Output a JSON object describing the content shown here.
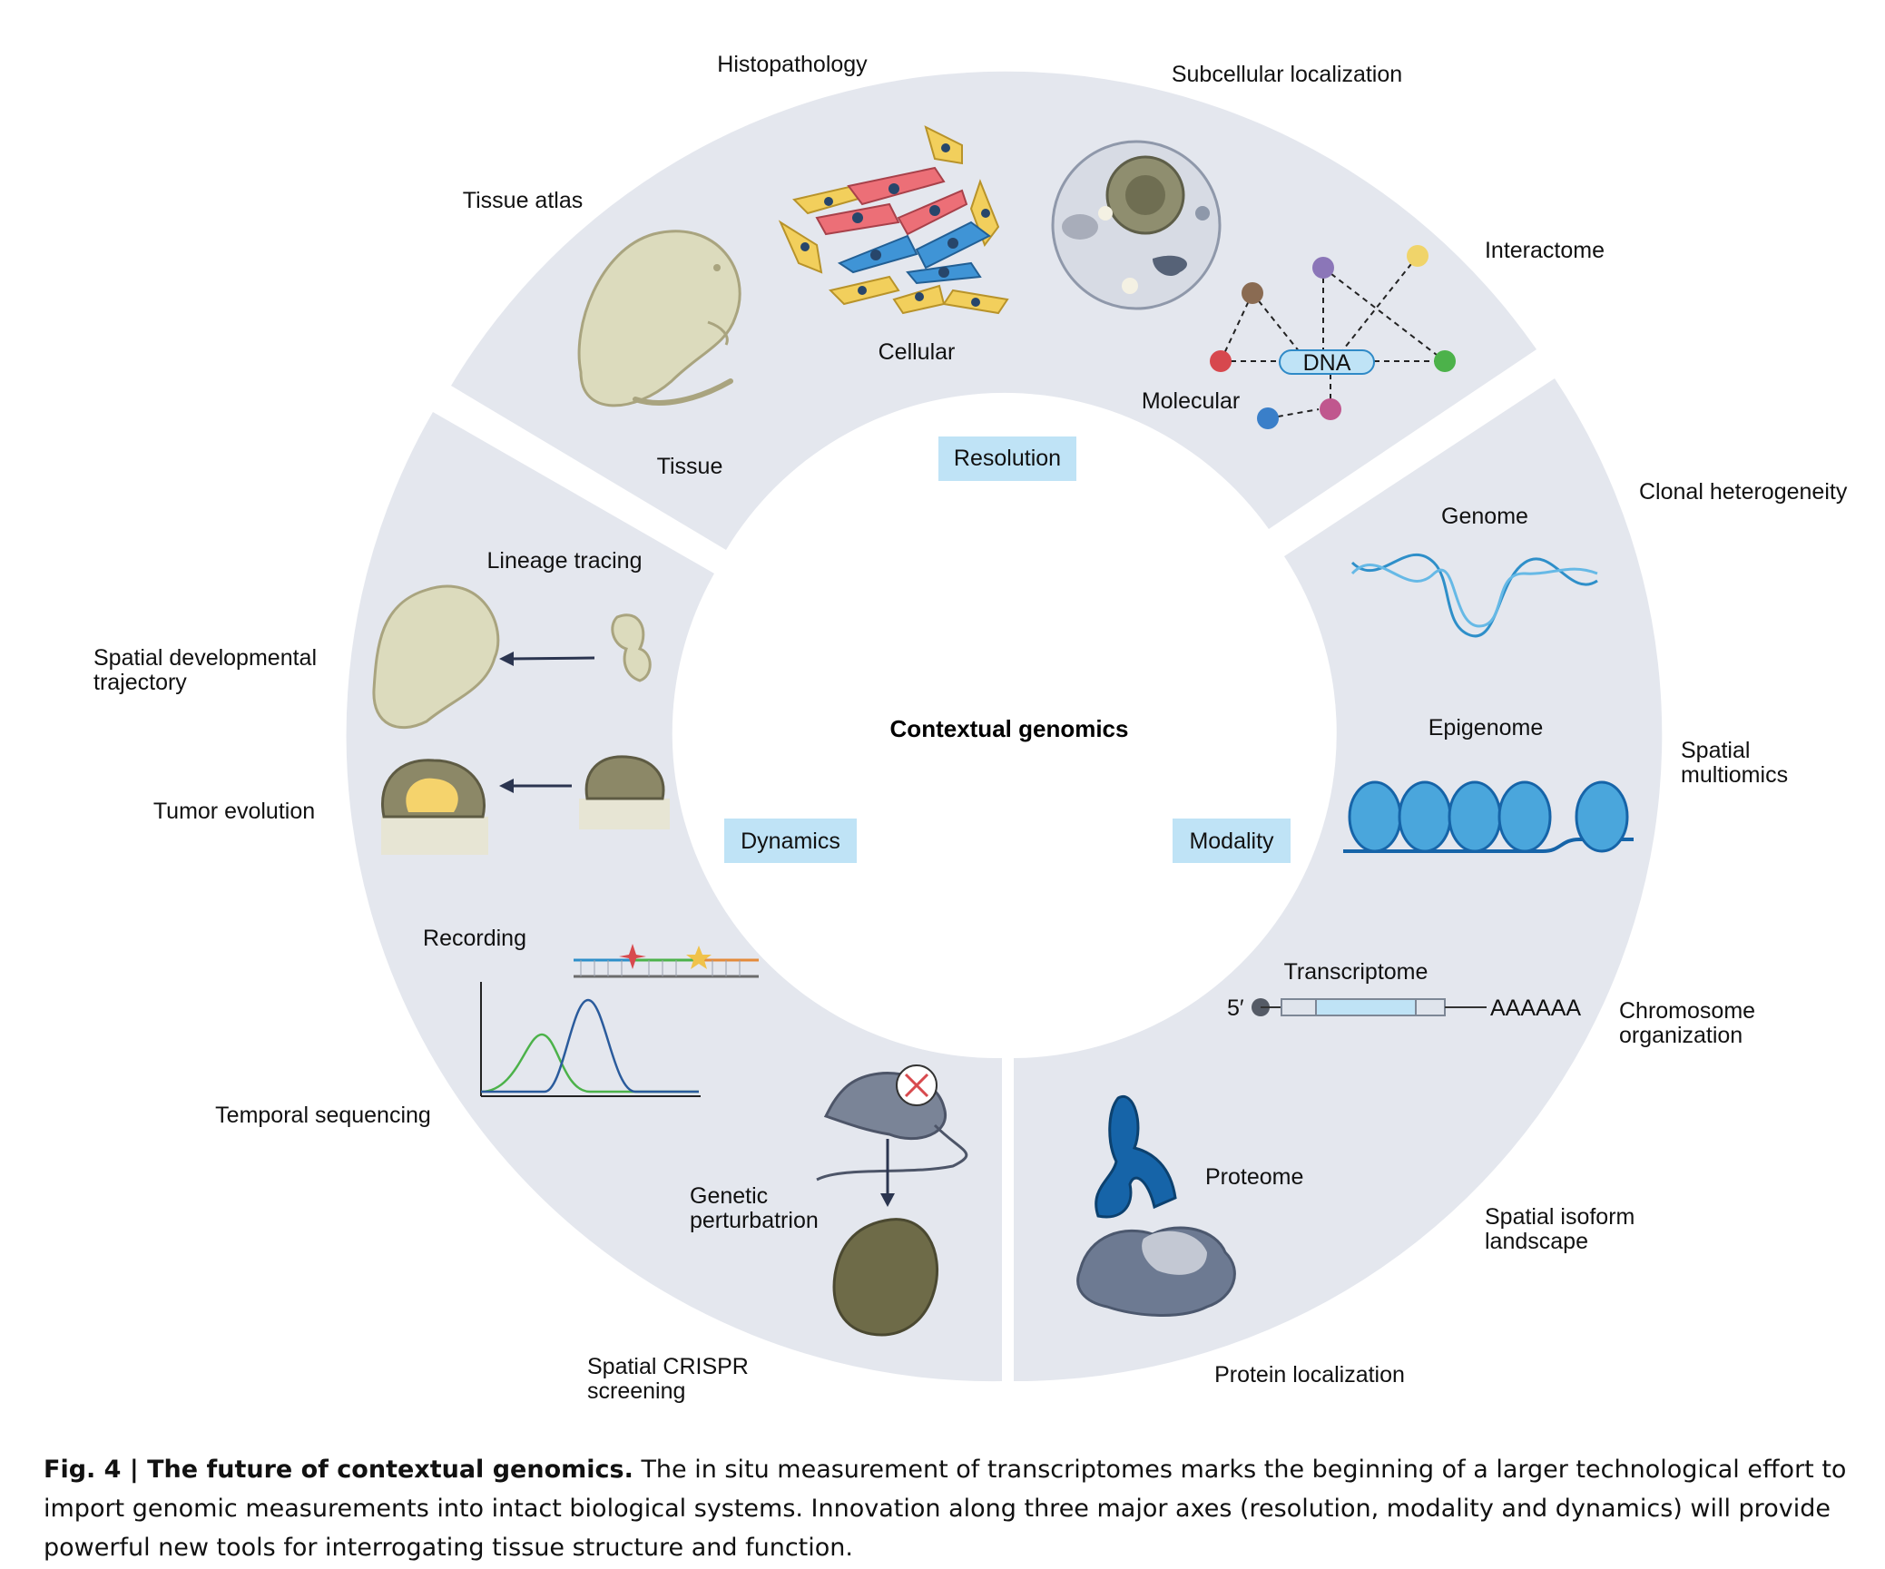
{
  "center_title": "Contextual genomics",
  "axes": {
    "resolution": "Resolution",
    "modality": "Modality",
    "dynamics": "Dynamics"
  },
  "resolution": {
    "tissue": "Tissue",
    "cellular": "Cellular",
    "molecular": "Molecular",
    "dna": "DNA",
    "outer": {
      "tissue_atlas": "Tissue atlas",
      "histopathology": "Histopathology",
      "subcellular": "Subcellular localization",
      "interactome": "Interactome"
    }
  },
  "modality": {
    "genome": "Genome",
    "epigenome": "Epigenome",
    "transcriptome": "Transcriptome",
    "five_prime": "5′",
    "polya": "AAAAAA",
    "proteome": "Proteome",
    "outer": {
      "clonal": "Clonal heterogeneity",
      "spatial_multiomics": [
        "Spatial",
        "multiomics"
      ],
      "chromosome": [
        "Chromosome",
        "organization"
      ],
      "isoform": [
        "Spatial isoform",
        "landscape"
      ],
      "protein_localization": "Protein localization"
    }
  },
  "dynamics": {
    "lineage": "Lineage tracing",
    "recording": "Recording",
    "genetic": [
      "Genetic",
      "perturbatrion"
    ],
    "outer": {
      "spatial_dev": [
        "Spatial developmental",
        "trajectory"
      ],
      "tumor": "Tumor evolution",
      "temporal": "Temporal sequencing",
      "crispr": [
        "Spatial CRISPR",
        "screening"
      ]
    }
  },
  "caption": {
    "lead": "Fig. 4 | The future of contextual genomics.",
    "body": " The in situ measurement of transcriptomes marks the beginning of a larger technological effort to import genomic measurements into intact biological systems. Innovation along three major axes (resolution, modality and dynamics) will provide powerful new tools for interrogating tissue structure and function."
  },
  "colors": {
    "ring": "#e4e7ee",
    "axis_box": "#bfe3f6",
    "embryo": "#dcdbbd",
    "embryo_stroke": "#a9a47f",
    "dna_blue": "#2e8fc9",
    "nucleosome": "#4aa6dc",
    "protein_dark": "#1664a8",
    "mouse": "#7a8497",
    "embryo_dark": "#6e6b48"
  }
}
